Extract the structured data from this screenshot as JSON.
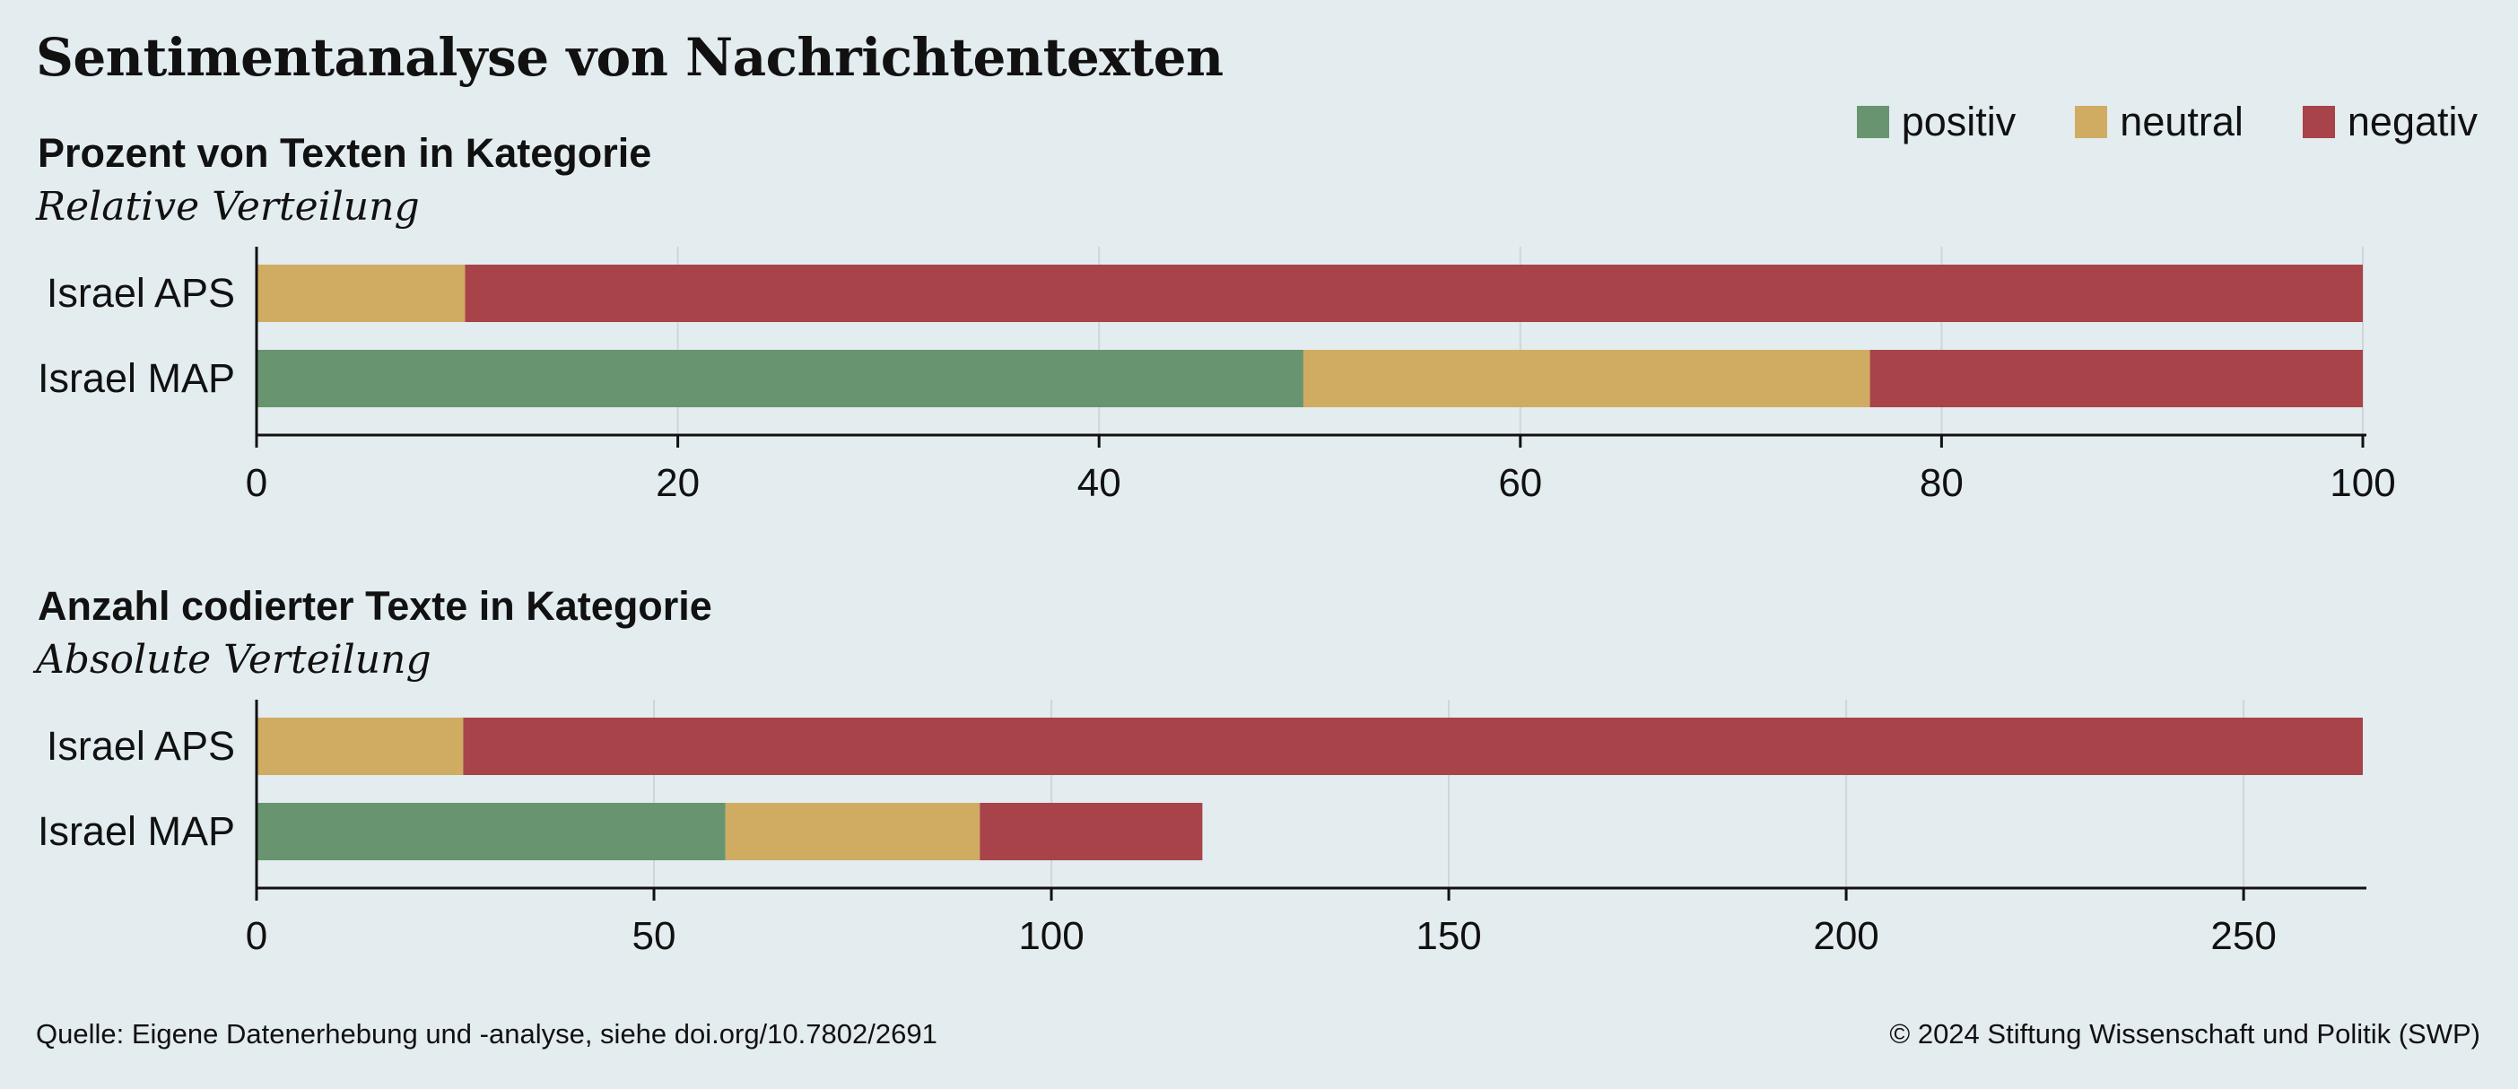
{
  "title": "Sentimentanalyse von Nachrichtentexten",
  "legend": [
    {
      "label": "positiv",
      "color": "#68956f"
    },
    {
      "label": "neutral",
      "color": "#d0ac62"
    },
    {
      "label": "negativ",
      "color": "#a8434a"
    }
  ],
  "panels": {
    "relative": {
      "title": "Prozent von Texten in Kategorie",
      "subtitle": "Relative Verteilung"
    },
    "absolute": {
      "title": "Anzahl codierter Texte in Kategorie",
      "subtitle": "Absolute Verteilung"
    }
  },
  "footer": {
    "source": "Quelle: Eigene Datenerhebung und -analyse, siehe doi.org/10.7802/2691",
    "copyright": "© 2024 Stiftung Wissenschaft und Politik (SWP)"
  },
  "chart_data": [
    {
      "type": "bar",
      "orientation": "horizontal",
      "stacked": true,
      "title": "Prozent von Texten in Kategorie",
      "subtitle": "Relative Verteilung",
      "categories": [
        "Israel  APS",
        "Israel MAP"
      ],
      "series": [
        {
          "name": "positiv",
          "values": [
            0,
            49.7
          ]
        },
        {
          "name": "neutral",
          "values": [
            9.9,
            26.9
          ]
        },
        {
          "name": "negativ",
          "values": [
            90.1,
            23.4
          ]
        }
      ],
      "xlim": [
        0,
        100
      ],
      "xticks": [
        0,
        20,
        40,
        60,
        80,
        100
      ],
      "grid": "vertical",
      "legend": "top-right"
    },
    {
      "type": "bar",
      "orientation": "horizontal",
      "stacked": true,
      "title": "Anzahl codierter Texte in Kategorie",
      "subtitle": "Absolute Verteilung",
      "categories": [
        "Israel  APS",
        "Israel MAP"
      ],
      "series": [
        {
          "name": "positiv",
          "values": [
            0,
            59
          ]
        },
        {
          "name": "neutral",
          "values": [
            26,
            32
          ]
        },
        {
          "name": "negativ",
          "values": [
            239,
            28
          ]
        }
      ],
      "xlim": [
        0,
        265
      ],
      "xticks": [
        0,
        50,
        100,
        150,
        200,
        250
      ],
      "grid": "vertical",
      "legend": "top-right"
    }
  ]
}
